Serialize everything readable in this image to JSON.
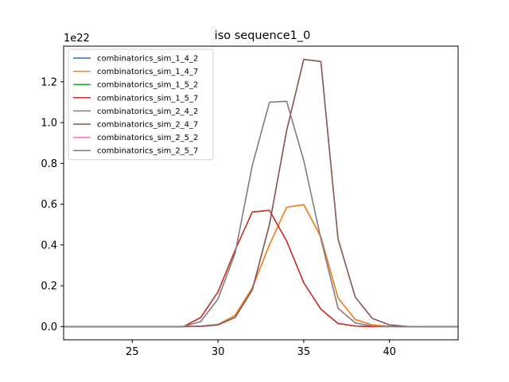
{
  "chart_data": {
    "type": "line",
    "title": "iso sequence1_0",
    "xlabel": "",
    "ylabel": "",
    "y_scale_label": "1e22",
    "xlim": [
      21,
      44
    ],
    "ylim": [
      -0.065,
      1.375
    ],
    "x_ticks": [
      25,
      30,
      35,
      40
    ],
    "x_tick_labels": [
      "25",
      "30",
      "35",
      "40"
    ],
    "y_ticks": [
      0.0,
      0.2,
      0.4,
      0.6,
      0.8,
      1.0,
      1.2
    ],
    "y_tick_labels": [
      "0.0",
      "0.2",
      "0.4",
      "0.6",
      "0.8",
      "1.0",
      "1.2"
    ],
    "grid": false,
    "legend_position": "top-left",
    "x": [
      21,
      22,
      23,
      24,
      25,
      26,
      27,
      28,
      29,
      30,
      31,
      32,
      33,
      34,
      35,
      36,
      37,
      38,
      39,
      40,
      41,
      42,
      43,
      44
    ],
    "series": [
      {
        "name": "combinatorics_sim_1_4_2",
        "color": "#1f77b4",
        "values": [
          0,
          0,
          0,
          0,
          0,
          0,
          0,
          0,
          0.002,
          0.01,
          0.055,
          0.19,
          0.4,
          0.585,
          0.598,
          0.44,
          0.14,
          0.035,
          0.008,
          0.001,
          0,
          0,
          0,
          0
        ]
      },
      {
        "name": "combinatorics_sim_1_4_7",
        "color": "#ff7f0e",
        "values": [
          0,
          0,
          0,
          0,
          0,
          0,
          0,
          0,
          0.002,
          0.01,
          0.055,
          0.19,
          0.4,
          0.585,
          0.598,
          0.44,
          0.14,
          0.035,
          0.008,
          0.001,
          0,
          0,
          0,
          0
        ]
      },
      {
        "name": "combinatorics_sim_1_5_2",
        "color": "#2ca02c",
        "values": [
          0,
          0,
          0,
          0,
          0,
          0,
          0,
          0,
          0.045,
          0.17,
          0.375,
          0.562,
          0.57,
          0.42,
          0.215,
          0.085,
          0.015,
          0.003,
          0,
          0,
          0,
          0,
          0,
          0
        ]
      },
      {
        "name": "combinatorics_sim_1_5_7",
        "color": "#d62728",
        "values": [
          0,
          0,
          0,
          0,
          0,
          0,
          0,
          0,
          0.045,
          0.17,
          0.375,
          0.562,
          0.57,
          0.42,
          0.215,
          0.085,
          0.015,
          0.003,
          0,
          0,
          0,
          0,
          0,
          0
        ]
      },
      {
        "name": "combinatorics_sim_2_4_2",
        "color": "#9467bd",
        "values": [
          0,
          0,
          0,
          0,
          0,
          0,
          0,
          0,
          0.001,
          0.008,
          0.045,
          0.18,
          0.5,
          0.96,
          1.31,
          1.3,
          0.43,
          0.145,
          0.04,
          0.008,
          0.001,
          0,
          0,
          0
        ]
      },
      {
        "name": "combinatorics_sim_2_4_7",
        "color": "#8c564b",
        "values": [
          0,
          0,
          0,
          0,
          0,
          0,
          0,
          0,
          0.001,
          0.008,
          0.045,
          0.18,
          0.5,
          0.96,
          1.31,
          1.3,
          0.43,
          0.145,
          0.04,
          0.008,
          0.001,
          0,
          0,
          0
        ]
      },
      {
        "name": "combinatorics_sim_2_5_2",
        "color": "#e377c2",
        "values": [
          0,
          0,
          0,
          0,
          0,
          0,
          0,
          0,
          0.025,
          0.135,
          0.36,
          0.79,
          1.1,
          1.105,
          0.815,
          0.43,
          0.09,
          0.018,
          0.003,
          0,
          0,
          0,
          0,
          0
        ]
      },
      {
        "name": "combinatorics_sim_2_5_7",
        "color": "#7f7f7f",
        "values": [
          0,
          0,
          0,
          0,
          0,
          0,
          0,
          0,
          0.025,
          0.135,
          0.36,
          0.79,
          1.1,
          1.105,
          0.815,
          0.43,
          0.09,
          0.018,
          0.003,
          0,
          0,
          0,
          0,
          0
        ]
      }
    ]
  }
}
